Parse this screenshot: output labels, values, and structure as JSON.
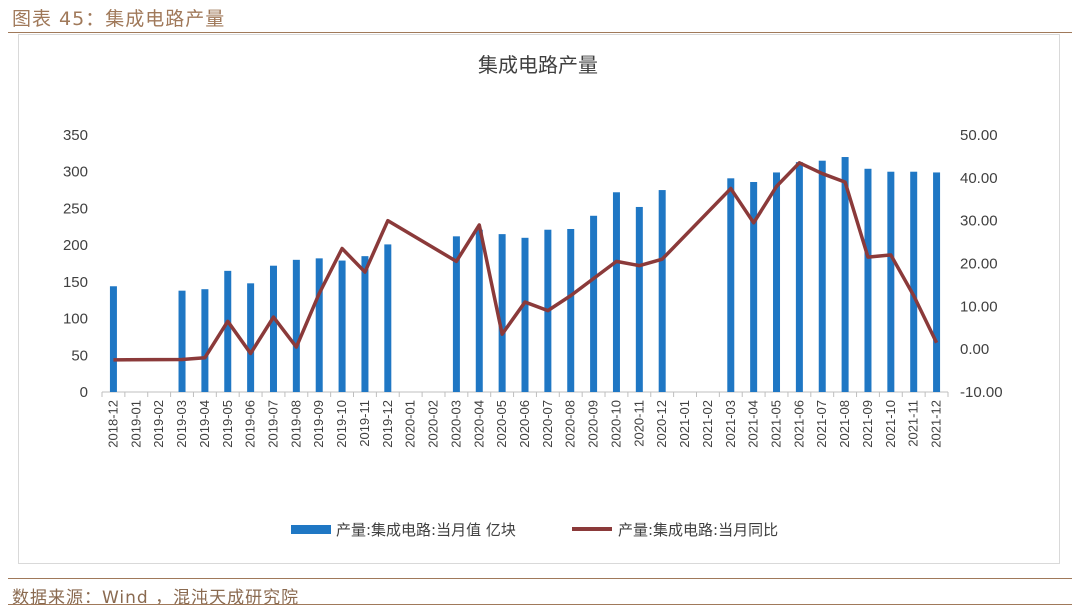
{
  "figure_title": "图表 45：集成电路产量",
  "source": "数据来源：Wind ，混沌天成研究院",
  "chart_data": {
    "type": "bar+line",
    "title": "集成电路产量",
    "categories": [
      "2018-12",
      "2019-01",
      "2019-02",
      "2019-03",
      "2019-04",
      "2019-05",
      "2019-06",
      "2019-07",
      "2019-08",
      "2019-09",
      "2019-10",
      "2019-11",
      "2019-12",
      "2020-01",
      "2020-02",
      "2020-03",
      "2020-04",
      "2020-05",
      "2020-06",
      "2020-07",
      "2020-08",
      "2020-09",
      "2020-10",
      "2020-11",
      "2020-12",
      "2021-01",
      "2021-02",
      "2021-03",
      "2021-04",
      "2021-05",
      "2021-06",
      "2021-07",
      "2021-08",
      "2021-09",
      "2021-10",
      "2021-11",
      "2021-12"
    ],
    "series": [
      {
        "name": "产量:集成电路:当月值 亿块",
        "type": "bar",
        "axis": "left",
        "color": "#1f77c4",
        "values": [
          144,
          null,
          null,
          138,
          140,
          165,
          148,
          172,
          180,
          182,
          179,
          185,
          201,
          null,
          null,
          212,
          221,
          215,
          210,
          221,
          222,
          240,
          272,
          252,
          275,
          null,
          null,
          291,
          286,
          299,
          313,
          315,
          320,
          304,
          300,
          300,
          299
        ]
      },
      {
        "name": "产量:集成电路:当月同比",
        "type": "line",
        "axis": "right",
        "color": "#8b3a3a",
        "values": [
          -2.5,
          null,
          null,
          -2.4,
          -2.0,
          6.5,
          -1.0,
          7.5,
          0.5,
          13.0,
          23.5,
          18.0,
          30.0,
          null,
          null,
          20.5,
          29.0,
          3.5,
          11.0,
          9.0,
          12.5,
          16.5,
          20.5,
          19.5,
          21.0,
          null,
          null,
          37.5,
          29.5,
          38.0,
          43.5,
          41.0,
          39.0,
          21.5,
          22.0,
          12.5,
          1.5
        ]
      }
    ],
    "y_left": {
      "min": 0,
      "max": 350,
      "ticks": [
        "0",
        "50",
        "100",
        "150",
        "200",
        "250",
        "300",
        "350"
      ]
    },
    "y_right": {
      "min": -10,
      "max": 50,
      "ticks": [
        "-10.00",
        "0.00",
        "10.00",
        "20.00",
        "30.00",
        "40.00",
        "50.00"
      ]
    },
    "grid": false,
    "legend_position": "bottom"
  }
}
